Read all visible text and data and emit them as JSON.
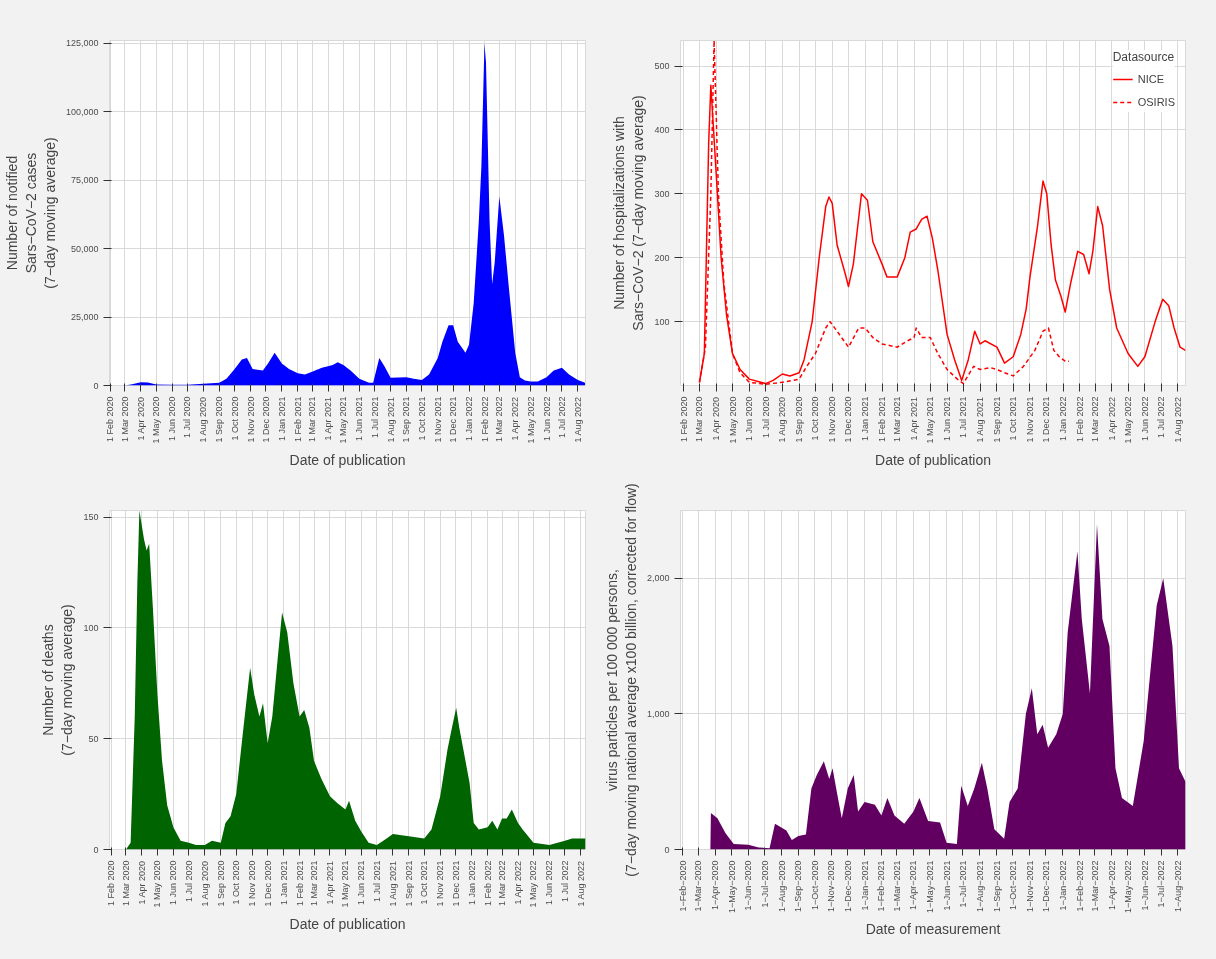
{
  "chart_data": [
    {
      "type": "area",
      "xlabel": "Date of publication",
      "ylabel": "Number of notified\nSars−CoV−2 cases\n(7−day moving average)",
      "grid": true,
      "xlim": [
        "2020-01-31",
        "2022-08-16"
      ],
      "ylim": [
        0,
        126000
      ],
      "yticks": [
        0,
        {
          "value": 25000,
          "label": "25,000"
        },
        {
          "value": 50000,
          "label": "50,000"
        },
        {
          "value": 75000,
          "label": "75,000"
        },
        {
          "value": 100000,
          "label": "100,000"
        },
        {
          "value": 125000,
          "label": "125,000"
        }
      ],
      "xticks": [
        {
          "value": "2020-02-01",
          "label": "1 Feb 2020"
        },
        {
          "value": "2020-03-01",
          "label": "1 Mar 2020"
        },
        {
          "value": "2020-04-01",
          "label": "1 Apr 2020"
        },
        {
          "value": "2020-05-01",
          "label": "1 May 2020"
        },
        {
          "value": "2020-06-01",
          "label": "1 Jun 2020"
        },
        {
          "value": "2020-07-01",
          "label": "1 Jul 2020"
        },
        {
          "value": "2020-08-01",
          "label": "1 Aug 2020"
        },
        {
          "value": "2020-09-01",
          "label": "1 Sep 2020"
        },
        {
          "value": "2020-10-01",
          "label": "1 Oct 2020"
        },
        {
          "value": "2020-11-01",
          "label": "1 Nov 2020"
        },
        {
          "value": "2020-12-01",
          "label": "1 Dec 2020"
        },
        {
          "value": "2021-01-01",
          "label": "1 Jan 2021"
        },
        {
          "value": "2021-02-01",
          "label": "1 Feb 2021"
        },
        {
          "value": "2021-03-01",
          "label": "1 Mar 2021"
        },
        {
          "value": "2021-04-01",
          "label": "1 Apr 2021"
        },
        {
          "value": "2021-05-01",
          "label": "1 May 2021"
        },
        {
          "value": "2021-06-01",
          "label": "1 Jun 2021"
        },
        {
          "value": "2021-07-01",
          "label": "1 Jul 2021"
        },
        {
          "value": "2021-08-01",
          "label": "1 Aug 2021"
        },
        {
          "value": "2021-09-01",
          "label": "1 Sep 2021"
        },
        {
          "value": "2021-10-01",
          "label": "1 Oct 2021"
        },
        {
          "value": "2021-11-01",
          "label": "1 Nov 2021"
        },
        {
          "value": "2021-12-01",
          "label": "1 Dec 2021"
        },
        {
          "value": "2022-01-01",
          "label": "1 Jan 2022"
        },
        {
          "value": "2022-02-01",
          "label": "1 Feb 2022"
        },
        {
          "value": "2022-03-01",
          "label": "1 Mar 2022"
        },
        {
          "value": "2022-04-01",
          "label": "1 Apr 2022"
        },
        {
          "value": "2022-05-01",
          "label": "1 May 2022"
        },
        {
          "value": "2022-06-01",
          "label": "1 Jun 2022"
        },
        {
          "value": "2022-07-01",
          "label": "1 Jul 2022"
        },
        {
          "value": "2022-08-01",
          "label": "1 Aug 2022"
        }
      ],
      "series": [
        {
          "color": "#0000ff",
          "x": [
            "2020-03-01",
            "2020-03-15",
            "2020-04-01",
            "2020-04-15",
            "2020-05-01",
            "2020-06-01",
            "2020-07-01",
            "2020-08-01",
            "2020-09-01",
            "2020-09-15",
            "2020-10-01",
            "2020-10-15",
            "2020-10-25",
            "2020-11-05",
            "2020-11-25",
            "2020-12-05",
            "2020-12-18",
            "2021-01-01",
            "2021-01-15",
            "2021-02-01",
            "2021-02-15",
            "2021-03-01",
            "2021-03-20",
            "2021-04-01",
            "2021-04-10",
            "2021-04-20",
            "2021-05-01",
            "2021-05-15",
            "2021-06-01",
            "2021-06-20",
            "2021-06-28",
            "2021-07-10",
            "2021-07-20",
            "2021-08-01",
            "2021-09-01",
            "2021-09-15",
            "2021-10-01",
            "2021-10-15",
            "2021-11-01",
            "2021-11-10",
            "2021-11-22",
            "2021-12-01",
            "2021-12-10",
            "2021-12-25",
            "2022-01-01",
            "2022-01-10",
            "2022-01-20",
            "2022-01-25",
            "2022-01-31",
            "2022-02-03",
            "2022-02-10",
            "2022-02-15",
            "2022-02-20",
            "2022-03-01",
            "2022-03-10",
            "2022-03-20",
            "2022-04-01",
            "2022-04-10",
            "2022-04-20",
            "2022-05-01",
            "2022-05-15",
            "2022-06-01",
            "2022-06-15",
            "2022-07-01",
            "2022-07-15",
            "2022-08-01",
            "2022-08-15"
          ],
          "values": [
            0,
            500,
            1200,
            1100,
            400,
            300,
            300,
            600,
            1000,
            2500,
            6000,
            9500,
            10000,
            6000,
            5500,
            8000,
            12000,
            8000,
            6000,
            4500,
            4000,
            5000,
            6500,
            7000,
            7500,
            8500,
            7500,
            5500,
            2500,
            1000,
            1000,
            10000,
            7000,
            2800,
            3000,
            2500,
            2000,
            4000,
            10000,
            16000,
            22000,
            22000,
            16000,
            12000,
            15000,
            30000,
            60000,
            80000,
            125000,
            118000,
            60000,
            37000,
            45000,
            69000,
            55000,
            35000,
            12000,
            3000,
            1800,
            1500,
            1500,
            3000,
            5500,
            6500,
            4000,
            2000,
            1000
          ]
        }
      ]
    },
    {
      "type": "line",
      "xlabel": "Date of publication",
      "ylabel": "Number of hospitalizations with\nSars−CoV−2 (7−day moving average)",
      "grid": true,
      "legend": "top right",
      "legend_title": "Datasource",
      "xlim": [
        "2020-01-26",
        "2022-08-15"
      ],
      "ylim": [
        0,
        540
      ],
      "yticks": [
        100,
        200,
        300,
        400,
        500
      ],
      "xticks": [
        {
          "value": "2020-02-01",
          "label": "1 Feb 2020"
        },
        {
          "value": "2020-03-01",
          "label": "1 Mar 2020"
        },
        {
          "value": "2020-04-01",
          "label": "1 Apr 2020"
        },
        {
          "value": "2020-05-01",
          "label": "1 May 2020"
        },
        {
          "value": "2020-06-01",
          "label": "1 Jun 2020"
        },
        {
          "value": "2020-07-01",
          "label": "1 Jul 2020"
        },
        {
          "value": "2020-08-01",
          "label": "1 Aug 2020"
        },
        {
          "value": "2020-09-01",
          "label": "1 Sep 2020"
        },
        {
          "value": "2020-10-01",
          "label": "1 Oct 2020"
        },
        {
          "value": "2020-11-01",
          "label": "1 Nov 2020"
        },
        {
          "value": "2020-12-01",
          "label": "1 Dec 2020"
        },
        {
          "value": "2021-01-01",
          "label": "1 Jan 2021"
        },
        {
          "value": "2021-02-01",
          "label": "1 Feb 2021"
        },
        {
          "value": "2021-03-01",
          "label": "1 Mar 2021"
        },
        {
          "value": "2021-04-01",
          "label": "1 Apr 2021"
        },
        {
          "value": "2021-05-01",
          "label": "1 May 2021"
        },
        {
          "value": "2021-06-01",
          "label": "1 Jun 2021"
        },
        {
          "value": "2021-07-01",
          "label": "1 Jul 2021"
        },
        {
          "value": "2021-08-01",
          "label": "1 Aug 2021"
        },
        {
          "value": "2021-09-01",
          "label": "1 Sep 2021"
        },
        {
          "value": "2021-10-01",
          "label": "1 Oct 2021"
        },
        {
          "value": "2021-11-01",
          "label": "1 Nov 2021"
        },
        {
          "value": "2021-12-01",
          "label": "1 Dec 2021"
        },
        {
          "value": "2022-01-01",
          "label": "1 Jan 2022"
        },
        {
          "value": "2022-02-01",
          "label": "1 Feb 2022"
        },
        {
          "value": "2022-03-01",
          "label": "1 Mar 2022"
        },
        {
          "value": "2022-04-01",
          "label": "1 Apr 2022"
        },
        {
          "value": "2022-05-01",
          "label": "1 May 2022"
        },
        {
          "value": "2022-06-01",
          "label": "1 Jun 2022"
        },
        {
          "value": "2022-07-01",
          "label": "1 Jul 2022"
        },
        {
          "value": "2022-08-01",
          "label": "1 Aug 2022"
        }
      ],
      "series": [
        {
          "name": "NICE",
          "color": "#ff0000",
          "line_style": "solid",
          "x": [
            "2020-03-01",
            "2020-03-10",
            "2020-03-18",
            "2020-03-22",
            "2020-04-01",
            "2020-04-10",
            "2020-04-20",
            "2020-05-01",
            "2020-05-15",
            "2020-06-01",
            "2020-07-01",
            "2020-07-15",
            "2020-08-01",
            "2020-08-15",
            "2020-09-01",
            "2020-09-10",
            "2020-09-25",
            "2020-10-08",
            "2020-10-20",
            "2020-10-26",
            "2020-11-01",
            "2020-11-10",
            "2020-11-25",
            "2020-12-01",
            "2020-12-10",
            "2020-12-25",
            "2021-01-05",
            "2021-01-15",
            "2021-02-01",
            "2021-02-10",
            "2021-03-01",
            "2021-03-15",
            "2021-03-25",
            "2021-04-05",
            "2021-04-15",
            "2021-04-25",
            "2021-05-05",
            "2021-05-15",
            "2021-06-01",
            "2021-06-15",
            "2021-06-28",
            "2021-07-10",
            "2021-07-22",
            "2021-08-01",
            "2021-08-10",
            "2021-09-01",
            "2021-09-15",
            "2021-10-01",
            "2021-10-15",
            "2021-10-25",
            "2021-11-01",
            "2021-11-15",
            "2021-11-25",
            "2021-12-02",
            "2021-12-10",
            "2021-12-18",
            "2021-12-28",
            "2022-01-05",
            "2022-01-15",
            "2022-01-28",
            "2022-02-08",
            "2022-02-18",
            "2022-02-25",
            "2022-03-06",
            "2022-03-15",
            "2022-03-28",
            "2022-04-10",
            "2022-05-01",
            "2022-05-19",
            "2022-06-01",
            "2022-06-20",
            "2022-07-04",
            "2022-07-15",
            "2022-07-25",
            "2022-08-05",
            "2022-08-15"
          ],
          "values": [
            5,
            50,
            380,
            470,
            330,
            200,
            110,
            50,
            25,
            10,
            3,
            8,
            18,
            15,
            20,
            40,
            100,
            200,
            280,
            295,
            285,
            220,
            175,
            155,
            190,
            300,
            290,
            225,
            190,
            170,
            170,
            200,
            240,
            245,
            260,
            265,
            230,
            180,
            80,
            40,
            8,
            40,
            85,
            65,
            70,
            60,
            35,
            45,
            80,
            120,
            170,
            250,
            320,
            300,
            220,
            165,
            140,
            115,
            160,
            210,
            205,
            175,
            210,
            280,
            250,
            150,
            90,
            50,
            30,
            45,
            100,
            135,
            125,
            90,
            60,
            55
          ]
        },
        {
          "name": "OSIRIS",
          "color": "#ff0000",
          "line_style": "dashed",
          "x": [
            "2020-03-01",
            "2020-03-12",
            "2020-03-22",
            "2020-03-28",
            "2020-04-05",
            "2020-04-15",
            "2020-05-01",
            "2020-05-15",
            "2020-06-01",
            "2020-07-01",
            "2020-08-01",
            "2020-09-01",
            "2020-09-15",
            "2020-10-01",
            "2020-10-20",
            "2020-10-28",
            "2020-11-10",
            "2020-12-01",
            "2020-12-20",
            "2021-01-01",
            "2021-01-15",
            "2021-02-01",
            "2021-03-01",
            "2021-03-20",
            "2021-04-01",
            "2021-04-05",
            "2021-04-15",
            "2021-05-01",
            "2021-05-15",
            "2021-06-01",
            "2021-06-20",
            "2021-07-01",
            "2021-07-20",
            "2021-08-01",
            "2021-08-20",
            "2021-09-01",
            "2021-09-15",
            "2021-10-01",
            "2021-10-20",
            "2021-11-10",
            "2021-11-25",
            "2021-12-05",
            "2021-12-15",
            "2021-12-25",
            "2022-01-05",
            "2022-01-12"
          ],
          "values": [
            5,
            60,
            300,
            540,
            300,
            160,
            50,
            20,
            5,
            2,
            5,
            10,
            30,
            50,
            90,
            100,
            85,
            60,
            90,
            90,
            75,
            65,
            60,
            70,
            75,
            90,
            75,
            75,
            50,
            25,
            10,
            3,
            30,
            25,
            28,
            25,
            20,
            15,
            30,
            55,
            85,
            90,
            55,
            45,
            38,
            38
          ]
        }
      ]
    },
    {
      "type": "area",
      "xlabel": "Date of publication",
      "ylabel": "Number of deaths\n(7−day moving average)",
      "grid": true,
      "xlim": [
        "2020-01-29",
        "2022-08-10"
      ],
      "ylim": [
        0,
        153
      ],
      "yticks": [
        0,
        50,
        100,
        150
      ],
      "xticks": [
        {
          "value": "2020-02-01",
          "label": "1 Feb 2020"
        },
        {
          "value": "2020-03-01",
          "label": "1 Mar 2020"
        },
        {
          "value": "2020-04-01",
          "label": "1 Apr 2020"
        },
        {
          "value": "2020-05-01",
          "label": "1 May 2020"
        },
        {
          "value": "2020-06-01",
          "label": "1 Jun 2020"
        },
        {
          "value": "2020-07-01",
          "label": "1 Jul 2020"
        },
        {
          "value": "2020-08-01",
          "label": "1 Aug 2020"
        },
        {
          "value": "2020-09-01",
          "label": "1 Sep 2020"
        },
        {
          "value": "2020-10-01",
          "label": "1 Oct 2020"
        },
        {
          "value": "2020-11-01",
          "label": "1 Nov 2020"
        },
        {
          "value": "2020-12-01",
          "label": "1 Dec 2020"
        },
        {
          "value": "2021-01-01",
          "label": "1 Jan 2021"
        },
        {
          "value": "2021-02-01",
          "label": "1 Feb 2021"
        },
        {
          "value": "2021-03-01",
          "label": "1 Mar 2021"
        },
        {
          "value": "2021-04-01",
          "label": "1 Apr 2021"
        },
        {
          "value": "2021-05-01",
          "label": "1 May 2021"
        },
        {
          "value": "2021-06-01",
          "label": "1 Jun 2021"
        },
        {
          "value": "2021-07-01",
          "label": "1 Jul 2021"
        },
        {
          "value": "2021-08-01",
          "label": "1 Aug 2021"
        },
        {
          "value": "2021-09-01",
          "label": "1 Sep 2021"
        },
        {
          "value": "2021-10-01",
          "label": "1 Oct 2021"
        },
        {
          "value": "2021-11-01",
          "label": "1 Nov 2021"
        },
        {
          "value": "2021-12-01",
          "label": "1 Dec 2021"
        },
        {
          "value": "2022-01-01",
          "label": "1 Jan 2022"
        },
        {
          "value": "2022-02-01",
          "label": "1 Feb 2022"
        },
        {
          "value": "2022-03-01",
          "label": "1 Mar 2022"
        },
        {
          "value": "2022-04-01",
          "label": "1 Apr 2022"
        },
        {
          "value": "2022-05-01",
          "label": "1 May 2022"
        },
        {
          "value": "2022-06-01",
          "label": "1 Jun 2022"
        },
        {
          "value": "2022-07-01",
          "label": "1 Jul 2022"
        },
        {
          "value": "2022-08-01",
          "label": "1 Aug 2022"
        }
      ],
      "series": [
        {
          "color": "#006400",
          "x": [
            "2020-03-01",
            "2020-03-10",
            "2020-03-18",
            "2020-03-23",
            "2020-03-27",
            "2020-04-05",
            "2020-04-10",
            "2020-04-15",
            "2020-04-22",
            "2020-05-01",
            "2020-05-10",
            "2020-05-20",
            "2020-06-01",
            "2020-06-15",
            "2020-07-01",
            "2020-07-15",
            "2020-08-01",
            "2020-08-15",
            "2020-09-01",
            "2020-09-10",
            "2020-09-20",
            "2020-10-01",
            "2020-10-15",
            "2020-10-28",
            "2020-11-05",
            "2020-11-15",
            "2020-11-22",
            "2020-12-01",
            "2020-12-10",
            "2020-12-20",
            "2020-12-29",
            "2021-01-08",
            "2021-01-20",
            "2021-02-01",
            "2021-02-10",
            "2021-02-20",
            "2021-03-01",
            "2021-03-15",
            "2021-04-01",
            "2021-04-15",
            "2021-05-01",
            "2021-05-08",
            "2021-05-20",
            "2021-06-01",
            "2021-06-15",
            "2021-07-01",
            "2021-07-20",
            "2021-08-01",
            "2021-09-01",
            "2021-10-01",
            "2021-10-15",
            "2021-11-01",
            "2021-11-15",
            "2021-11-22",
            "2021-12-02",
            "2021-12-08",
            "2021-12-20",
            "2021-12-28",
            "2022-01-05",
            "2022-01-15",
            "2022-02-01",
            "2022-02-10",
            "2022-02-20",
            "2022-03-01",
            "2022-03-10",
            "2022-03-20",
            "2022-04-01",
            "2022-04-10",
            "2022-05-01",
            "2022-06-01",
            "2022-07-01",
            "2022-07-15",
            "2022-08-01",
            "2022-08-10"
          ],
          "values": [
            0,
            3,
            60,
            120,
            153,
            140,
            135,
            138,
            110,
            70,
            40,
            20,
            10,
            4,
            3,
            2,
            2,
            4,
            3,
            12,
            15,
            25,
            55,
            82,
            70,
            60,
            66,
            48,
            60,
            85,
            107,
            98,
            75,
            60,
            63,
            55,
            40,
            32,
            24,
            21,
            18,
            22,
            13,
            8,
            3,
            2,
            5,
            7,
            6,
            5,
            9,
            24,
            45,
            53,
            64,
            55,
            40,
            30,
            12,
            9,
            10,
            13,
            9,
            14,
            14,
            18,
            12,
            9,
            3,
            2,
            4,
            5,
            5,
            5
          ]
        }
      ]
    },
    {
      "type": "area",
      "xlabel": "Date of measurement",
      "ylabel": "virus particles per 100 000 persons,\n(7−day moving national average x100 billion, corrected for flow)",
      "grid": true,
      "xlim": [
        "2020-01-28",
        "2022-08-15"
      ],
      "ylim": [
        0,
        2500
      ],
      "yticks": [
        0,
        {
          "value": 1000,
          "label": "1,000"
        },
        {
          "value": 2000,
          "label": "2,000"
        }
      ],
      "xticks": [
        {
          "value": "2020-02-01",
          "label": "1−Feb−2020"
        },
        {
          "value": "2020-03-01",
          "label": "1−Mar−2020"
        },
        {
          "value": "2020-04-01",
          "label": "1−Apr−2020"
        },
        {
          "value": "2020-05-01",
          "label": "1−May−2020"
        },
        {
          "value": "2020-06-01",
          "label": "1−Jun−2020"
        },
        {
          "value": "2020-07-01",
          "label": "1−Jul−2020"
        },
        {
          "value": "2020-08-01",
          "label": "1−Aug−2020"
        },
        {
          "value": "2020-09-01",
          "label": "1−Sep−2020"
        },
        {
          "value": "2020-10-01",
          "label": "1−Oct−2020"
        },
        {
          "value": "2020-11-01",
          "label": "1−Nov−2020"
        },
        {
          "value": "2020-12-01",
          "label": "1−Dec−2020"
        },
        {
          "value": "2021-01-01",
          "label": "1−Jan−2021"
        },
        {
          "value": "2021-02-01",
          "label": "1−Feb−2021"
        },
        {
          "value": "2021-03-01",
          "label": "1−Mar−2021"
        },
        {
          "value": "2021-04-01",
          "label": "1−Apr−2021"
        },
        {
          "value": "2021-05-01",
          "label": "1−May−2021"
        },
        {
          "value": "2021-06-01",
          "label": "1−Jun−2021"
        },
        {
          "value": "2021-07-01",
          "label": "1−Jul−2021"
        },
        {
          "value": "2021-08-01",
          "label": "1−Aug−2021"
        },
        {
          "value": "2021-09-01",
          "label": "1−Sep−2021"
        },
        {
          "value": "2021-10-01",
          "label": "1−Oct−2021"
        },
        {
          "value": "2021-11-01",
          "label": "1−Nov−2021"
        },
        {
          "value": "2021-12-01",
          "label": "1−Dec−2021"
        },
        {
          "value": "2022-01-01",
          "label": "1−Jan−2022"
        },
        {
          "value": "2022-02-01",
          "label": "1−Feb−2022"
        },
        {
          "value": "2022-03-01",
          "label": "1−Mar−2022"
        },
        {
          "value": "2022-04-01",
          "label": "1−Apr−2022"
        },
        {
          "value": "2022-05-01",
          "label": "1−May−2022"
        },
        {
          "value": "2022-06-01",
          "label": "1−Jun−2022"
        },
        {
          "value": "2022-07-01",
          "label": "1−Jul−2022"
        },
        {
          "value": "2022-08-01",
          "label": "1−Aug−2022"
        }
      ],
      "series": [
        {
          "color": "#610061",
          "x": [
            "2020-03-23",
            "2020-03-24",
            "2020-04-05",
            "2020-04-20",
            "2020-05-05",
            "2020-06-01",
            "2020-06-20",
            "2020-07-10",
            "2020-07-20",
            "2020-08-10",
            "2020-08-20",
            "2020-09-01",
            "2020-09-15",
            "2020-09-25",
            "2020-10-05",
            "2020-10-18",
            "2020-10-28",
            "2020-11-03",
            "2020-11-12",
            "2020-11-20",
            "2020-12-01",
            "2020-12-12",
            "2020-12-20",
            "2021-01-01",
            "2021-01-20",
            "2021-02-01",
            "2021-02-12",
            "2021-02-25",
            "2021-03-15",
            "2021-04-01",
            "2021-04-12",
            "2021-04-28",
            "2021-05-20",
            "2021-06-01",
            "2021-06-20",
            "2021-06-28",
            "2021-07-10",
            "2021-07-22",
            "2021-08-05",
            "2021-08-15",
            "2021-08-28",
            "2021-09-15",
            "2021-09-25",
            "2021-10-10",
            "2021-10-25",
            "2021-11-05",
            "2021-11-15",
            "2021-11-25",
            "2021-12-05",
            "2021-12-20",
            "2022-01-01",
            "2022-01-10",
            "2022-01-28",
            "2022-02-05",
            "2022-02-20",
            "2022-03-05",
            "2022-03-15",
            "2022-03-28",
            "2022-04-08",
            "2022-04-20",
            "2022-05-10",
            "2022-05-30",
            "2022-06-23",
            "2022-07-05",
            "2022-07-22",
            "2022-08-03",
            "2022-08-15"
          ],
          "values": [
            0,
            270,
            230,
            120,
            40,
            35,
            15,
            10,
            190,
            140,
            70,
            100,
            110,
            450,
            550,
            650,
            520,
            600,
            400,
            230,
            450,
            550,
            280,
            350,
            330,
            250,
            380,
            250,
            190,
            280,
            380,
            210,
            200,
            50,
            40,
            470,
            320,
            450,
            640,
            450,
            150,
            80,
            350,
            450,
            1000,
            1190,
            850,
            920,
            750,
            850,
            1000,
            1600,
            2200,
            1700,
            1150,
            2400,
            1700,
            1500,
            600,
            380,
            320,
            800,
            1800,
            2000,
            1500,
            600,
            500
          ]
        }
      ]
    }
  ]
}
